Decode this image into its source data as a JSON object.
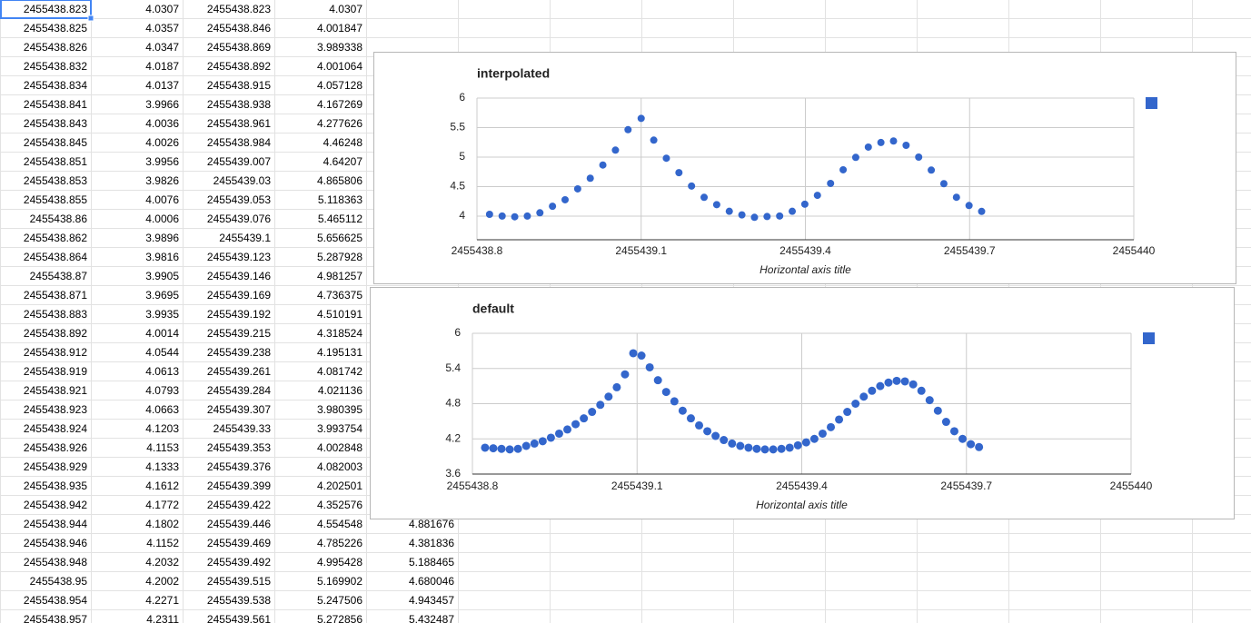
{
  "sheet": {
    "rows": [
      [
        "2455438.823",
        "4.0307",
        "2455438.823",
        "4.0307"
      ],
      [
        "2455438.825",
        "4.0357",
        "2455438.846",
        "4.001847"
      ],
      [
        "2455438.826",
        "4.0347",
        "2455438.869",
        "3.989338"
      ],
      [
        "2455438.832",
        "4.0187",
        "2455438.892",
        "4.001064"
      ],
      [
        "2455438.834",
        "4.0137",
        "2455438.915",
        "4.057128"
      ],
      [
        "2455438.841",
        "3.9966",
        "2455438.938",
        "4.167269"
      ],
      [
        "2455438.843",
        "4.0036",
        "2455438.961",
        "4.277626"
      ],
      [
        "2455438.845",
        "4.0026",
        "2455438.984",
        "4.46248"
      ],
      [
        "2455438.851",
        "3.9956",
        "2455439.007",
        "4.64207"
      ],
      [
        "2455438.853",
        "3.9826",
        "2455439.03",
        "4.865806"
      ],
      [
        "2455438.855",
        "4.0076",
        "2455439.053",
        "5.118363"
      ],
      [
        "2455438.86",
        "4.0006",
        "2455439.076",
        "5.465112"
      ],
      [
        "2455438.862",
        "3.9896",
        "2455439.1",
        "5.656625"
      ],
      [
        "2455438.864",
        "3.9816",
        "2455439.123",
        "5.287928"
      ],
      [
        "2455438.87",
        "3.9905",
        "2455439.146",
        "4.981257"
      ],
      [
        "2455438.871",
        "3.9695",
        "2455439.169",
        "4.736375"
      ],
      [
        "2455438.883",
        "3.9935",
        "2455439.192",
        "4.510191"
      ],
      [
        "2455438.892",
        "4.0014",
        "2455439.215",
        "4.318524"
      ],
      [
        "2455438.912",
        "4.0544",
        "2455439.238",
        "4.195131"
      ],
      [
        "2455438.919",
        "4.0613",
        "2455439.261",
        "4.081742"
      ],
      [
        "2455438.921",
        "4.0793",
        "2455439.284",
        "4.021136"
      ],
      [
        "2455438.923",
        "4.0663",
        "2455439.307",
        "3.980395"
      ],
      [
        "2455438.924",
        "4.1203",
        "2455439.33",
        "3.993754"
      ],
      [
        "2455438.926",
        "4.1153",
        "2455439.353",
        "4.002848"
      ],
      [
        "2455438.929",
        "4.1333",
        "2455439.376",
        "4.082003"
      ],
      [
        "2455438.935",
        "4.1612",
        "2455439.399",
        "4.202501"
      ],
      [
        "2455438.942",
        "4.1772",
        "2455439.422",
        "4.352576"
      ],
      [
        "2455438.944",
        "4.1802",
        "2455439.446",
        "4.554548",
        "4.881676"
      ],
      [
        "2455438.946",
        "4.1152",
        "2455439.469",
        "4.785226",
        "4.381836"
      ],
      [
        "2455438.948",
        "4.2032",
        "2455439.492",
        "4.995428",
        "5.188465"
      ],
      [
        "2455438.95",
        "4.2002",
        "2455439.515",
        "5.169902",
        "4.680046"
      ],
      [
        "2455438.954",
        "4.2271",
        "2455439.538",
        "5.247506",
        "4.943457"
      ],
      [
        "2455438.957",
        "4.2311",
        "2455439.561",
        "5.272856",
        "5.432487"
      ]
    ]
  },
  "chart_data": [
    {
      "type": "scatter",
      "title": "interpolated",
      "x_label": "Horizontal axis title",
      "color": "#3366cc",
      "legend": "right",
      "grid": true,
      "xlim": [
        2455438.8,
        2455440
      ],
      "xticks": [
        2455438.8,
        2455439.1,
        2455439.4,
        2455439.7,
        2455440
      ],
      "ylim": [
        3.6,
        6
      ],
      "yticks": [
        4,
        4.5,
        5,
        5.5,
        6
      ],
      "x": [
        2455438.823,
        2455438.846,
        2455438.869,
        2455438.892,
        2455438.915,
        2455438.938,
        2455438.961,
        2455438.984,
        2455439.007,
        2455439.03,
        2455439.053,
        2455439.076,
        2455439.1,
        2455439.123,
        2455439.146,
        2455439.169,
        2455439.192,
        2455439.215,
        2455439.238,
        2455439.261,
        2455439.284,
        2455439.307,
        2455439.33,
        2455439.353,
        2455439.376,
        2455439.399,
        2455439.422,
        2455439.446,
        2455439.469,
        2455439.492,
        2455439.515,
        2455439.538,
        2455439.561,
        2455439.584,
        2455439.607,
        2455439.63,
        2455439.653,
        2455439.676,
        2455439.699,
        2455439.722
      ],
      "values": [
        4.0307,
        4.001847,
        3.989338,
        4.001064,
        4.057128,
        4.167269,
        4.277626,
        4.46248,
        4.64207,
        4.865806,
        5.118363,
        5.465112,
        5.656625,
        5.287928,
        4.981257,
        4.736375,
        4.510191,
        4.318524,
        4.195131,
        4.081742,
        4.021136,
        3.980395,
        3.993754,
        4.002848,
        4.082003,
        4.202501,
        4.352576,
        4.554548,
        4.785226,
        4.995428,
        5.169902,
        5.247506,
        5.272856,
        5.2,
        5.0,
        4.78,
        4.55,
        4.32,
        4.18,
        4.08
      ]
    },
    {
      "type": "scatter",
      "title": "default",
      "x_label": "Horizontal axis title",
      "color": "#3366cc",
      "legend": "right",
      "grid": true,
      "xlim": [
        2455438.8,
        2455440
      ],
      "xticks": [
        2455438.8,
        2455439.1,
        2455439.4,
        2455439.7,
        2455440
      ],
      "ylim": [
        3.6,
        6
      ],
      "yticks": [
        3.6,
        4.2,
        4.8,
        5.4,
        6
      ],
      "x": [
        2455438.823,
        2455438.838,
        2455438.853,
        2455438.868,
        2455438.883,
        2455438.898,
        2455438.913,
        2455438.928,
        2455438.943,
        2455438.958,
        2455438.973,
        2455438.988,
        2455439.003,
        2455439.018,
        2455439.033,
        2455439.048,
        2455439.063,
        2455439.078,
        2455439.093,
        2455439.108,
        2455439.123,
        2455439.138,
        2455439.153,
        2455439.168,
        2455439.183,
        2455439.198,
        2455439.213,
        2455439.228,
        2455439.243,
        2455439.258,
        2455439.273,
        2455439.288,
        2455439.303,
        2455439.318,
        2455439.333,
        2455439.348,
        2455439.363,
        2455439.378,
        2455439.393,
        2455439.408,
        2455439.423,
        2455439.438,
        2455439.453,
        2455439.468,
        2455439.483,
        2455439.498,
        2455439.513,
        2455439.528,
        2455439.543,
        2455439.558,
        2455439.573,
        2455439.588,
        2455439.603,
        2455439.618,
        2455439.633,
        2455439.648,
        2455439.663,
        2455439.678,
        2455439.693,
        2455439.708,
        2455439.723
      ],
      "values": [
        4.05,
        4.04,
        4.03,
        4.02,
        4.03,
        4.08,
        4.12,
        4.16,
        4.22,
        4.29,
        4.36,
        4.45,
        4.55,
        4.66,
        4.78,
        4.92,
        5.08,
        5.3,
        5.66,
        5.62,
        5.42,
        5.2,
        5.0,
        4.84,
        4.68,
        4.55,
        4.43,
        4.33,
        4.25,
        4.18,
        4.12,
        4.08,
        4.05,
        4.03,
        4.02,
        4.02,
        4.03,
        4.05,
        4.09,
        4.14,
        4.2,
        4.29,
        4.4,
        4.53,
        4.66,
        4.8,
        4.92,
        5.02,
        5.1,
        5.16,
        5.19,
        5.18,
        5.13,
        5.02,
        4.86,
        4.68,
        4.49,
        4.33,
        4.2,
        4.11,
        4.06
      ]
    }
  ]
}
